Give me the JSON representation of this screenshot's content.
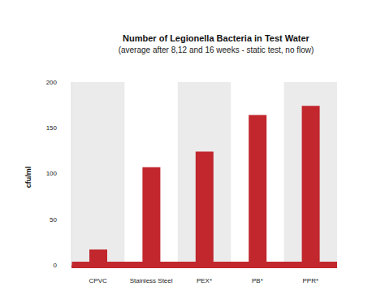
{
  "chart_data": {
    "type": "bar",
    "title": "Number of Legionella Bacteria in Test Water",
    "subtitle": "(average after 8,12 and 16 weeks - static test, no flow)",
    "y_label": "cfu/ml",
    "categories": [
      "CPVC",
      "Stainless Steel",
      "PEX*",
      "PB*",
      "PPR*"
    ],
    "values": [
      17,
      107,
      124,
      164,
      174
    ],
    "color": "#c1272d",
    "ylim": [
      0,
      200
    ],
    "yticks": [
      0,
      50,
      100,
      150,
      200
    ],
    "grid": false
  }
}
